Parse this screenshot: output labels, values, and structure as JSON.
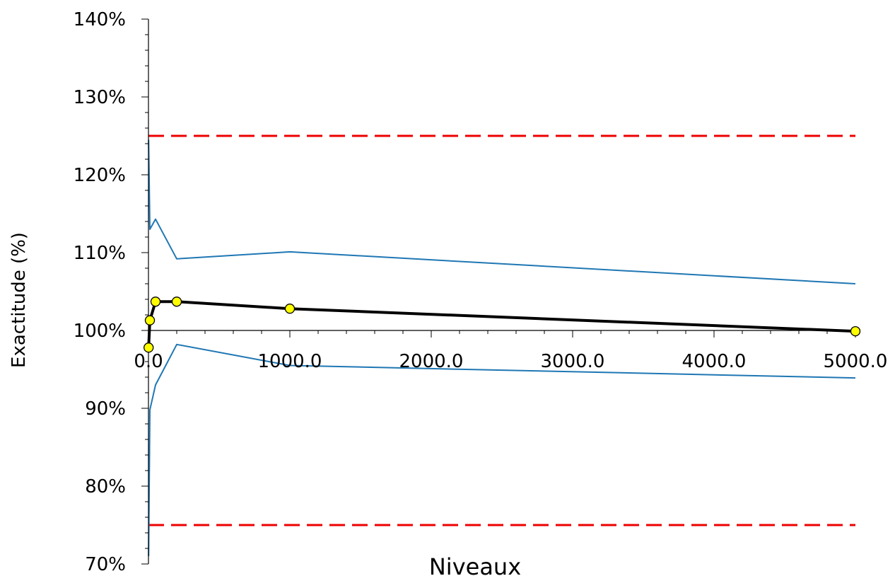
{
  "chart_data": {
    "type": "line",
    "title": "",
    "xlabel": "Niveaux",
    "ylabel": "Exactitude (%)",
    "xlim": [
      0,
      5000
    ],
    "ylim": [
      70,
      140
    ],
    "x_ticks": [
      0,
      1000,
      2000,
      3000,
      4000,
      5000
    ],
    "x_tick_labels": [
      "0.0",
      "1000.0",
      "2000.0",
      "3000.0",
      "4000.0",
      "5000.0"
    ],
    "y_ticks": [
      70,
      80,
      90,
      100,
      110,
      120,
      130,
      140
    ],
    "y_tick_labels": [
      "70%",
      "80%",
      "90%",
      "100%",
      "110%",
      "120%",
      "130%",
      "140%"
    ],
    "grid": false,
    "series": [
      {
        "role": "main",
        "color": "#000000",
        "marker_color": "#ffff00",
        "x": [
          1,
          10,
          50,
          200,
          1000,
          5000
        ],
        "y": [
          97.8,
          101.3,
          103.7,
          103.7,
          102.8,
          99.9
        ]
      },
      {
        "role": "upper-bound",
        "color": "#1f77b4",
        "x": [
          1,
          10,
          50,
          200,
          1000,
          5000
        ],
        "y": [
          124.5,
          113.0,
          114.3,
          109.2,
          110.1,
          106.0
        ]
      },
      {
        "role": "lower-bound",
        "color": "#1f77b4",
        "x": [
          1,
          10,
          50,
          200,
          1000,
          5000
        ],
        "y": [
          71.0,
          89.8,
          93.0,
          98.2,
          95.5,
          93.9
        ]
      },
      {
        "role": "limit-upper",
        "color": "#ee0000",
        "dashed": true,
        "x": [
          0,
          5000
        ],
        "y": [
          125,
          125
        ]
      },
      {
        "role": "limit-lower",
        "color": "#ee0000",
        "dashed": true,
        "x": [
          0,
          5000
        ],
        "y": [
          75,
          75
        ]
      }
    ]
  }
}
